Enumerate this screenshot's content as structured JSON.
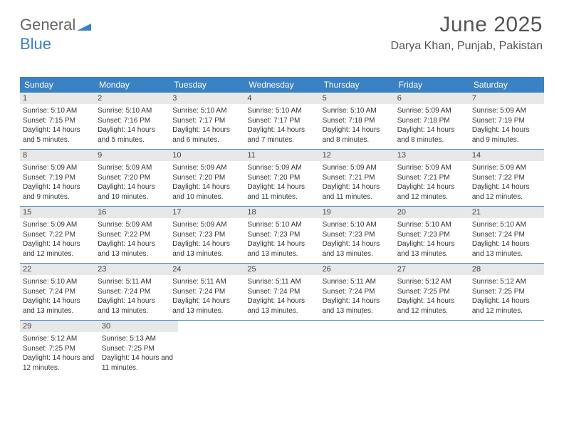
{
  "logo": {
    "part1": "General",
    "part2": "Blue"
  },
  "title": "June 2025",
  "location": "Darya Khan, Punjab, Pakistan",
  "colors": {
    "header_bg": "#3b82c4",
    "header_text": "#ffffff",
    "daynum_bg": "#e8e8e8",
    "border": "#3b82c4",
    "text": "#333333",
    "title_text": "#555555"
  },
  "day_names": [
    "Sunday",
    "Monday",
    "Tuesday",
    "Wednesday",
    "Thursday",
    "Friday",
    "Saturday"
  ],
  "days": [
    {
      "n": 1,
      "sr": "5:10 AM",
      "ss": "7:15 PM",
      "dl": "14 hours and 5 minutes."
    },
    {
      "n": 2,
      "sr": "5:10 AM",
      "ss": "7:16 PM",
      "dl": "14 hours and 5 minutes."
    },
    {
      "n": 3,
      "sr": "5:10 AM",
      "ss": "7:17 PM",
      "dl": "14 hours and 6 minutes."
    },
    {
      "n": 4,
      "sr": "5:10 AM",
      "ss": "7:17 PM",
      "dl": "14 hours and 7 minutes."
    },
    {
      "n": 5,
      "sr": "5:10 AM",
      "ss": "7:18 PM",
      "dl": "14 hours and 8 minutes."
    },
    {
      "n": 6,
      "sr": "5:09 AM",
      "ss": "7:18 PM",
      "dl": "14 hours and 8 minutes."
    },
    {
      "n": 7,
      "sr": "5:09 AM",
      "ss": "7:19 PM",
      "dl": "14 hours and 9 minutes."
    },
    {
      "n": 8,
      "sr": "5:09 AM",
      "ss": "7:19 PM",
      "dl": "14 hours and 9 minutes."
    },
    {
      "n": 9,
      "sr": "5:09 AM",
      "ss": "7:20 PM",
      "dl": "14 hours and 10 minutes."
    },
    {
      "n": 10,
      "sr": "5:09 AM",
      "ss": "7:20 PM",
      "dl": "14 hours and 10 minutes."
    },
    {
      "n": 11,
      "sr": "5:09 AM",
      "ss": "7:20 PM",
      "dl": "14 hours and 11 minutes."
    },
    {
      "n": 12,
      "sr": "5:09 AM",
      "ss": "7:21 PM",
      "dl": "14 hours and 11 minutes."
    },
    {
      "n": 13,
      "sr": "5:09 AM",
      "ss": "7:21 PM",
      "dl": "14 hours and 12 minutes."
    },
    {
      "n": 14,
      "sr": "5:09 AM",
      "ss": "7:22 PM",
      "dl": "14 hours and 12 minutes."
    },
    {
      "n": 15,
      "sr": "5:09 AM",
      "ss": "7:22 PM",
      "dl": "14 hours and 12 minutes."
    },
    {
      "n": 16,
      "sr": "5:09 AM",
      "ss": "7:22 PM",
      "dl": "14 hours and 13 minutes."
    },
    {
      "n": 17,
      "sr": "5:09 AM",
      "ss": "7:23 PM",
      "dl": "14 hours and 13 minutes."
    },
    {
      "n": 18,
      "sr": "5:10 AM",
      "ss": "7:23 PM",
      "dl": "14 hours and 13 minutes."
    },
    {
      "n": 19,
      "sr": "5:10 AM",
      "ss": "7:23 PM",
      "dl": "14 hours and 13 minutes."
    },
    {
      "n": 20,
      "sr": "5:10 AM",
      "ss": "7:23 PM",
      "dl": "14 hours and 13 minutes."
    },
    {
      "n": 21,
      "sr": "5:10 AM",
      "ss": "7:24 PM",
      "dl": "14 hours and 13 minutes."
    },
    {
      "n": 22,
      "sr": "5:10 AM",
      "ss": "7:24 PM",
      "dl": "14 hours and 13 minutes."
    },
    {
      "n": 23,
      "sr": "5:11 AM",
      "ss": "7:24 PM",
      "dl": "14 hours and 13 minutes."
    },
    {
      "n": 24,
      "sr": "5:11 AM",
      "ss": "7:24 PM",
      "dl": "14 hours and 13 minutes."
    },
    {
      "n": 25,
      "sr": "5:11 AM",
      "ss": "7:24 PM",
      "dl": "14 hours and 13 minutes."
    },
    {
      "n": 26,
      "sr": "5:11 AM",
      "ss": "7:24 PM",
      "dl": "14 hours and 13 minutes."
    },
    {
      "n": 27,
      "sr": "5:12 AM",
      "ss": "7:25 PM",
      "dl": "14 hours and 12 minutes."
    },
    {
      "n": 28,
      "sr": "5:12 AM",
      "ss": "7:25 PM",
      "dl": "14 hours and 12 minutes."
    },
    {
      "n": 29,
      "sr": "5:12 AM",
      "ss": "7:25 PM",
      "dl": "14 hours and 12 minutes."
    },
    {
      "n": 30,
      "sr": "5:13 AM",
      "ss": "7:25 PM",
      "dl": "14 hours and 11 minutes."
    }
  ],
  "labels": {
    "sunrise": "Sunrise:",
    "sunset": "Sunset:",
    "daylight": "Daylight:"
  }
}
